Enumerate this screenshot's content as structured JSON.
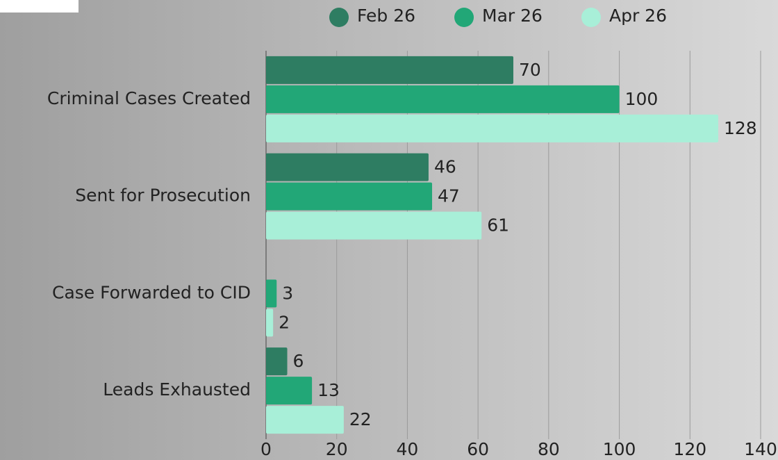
{
  "chart_data": {
    "type": "hbar",
    "categories": [
      "Criminal Cases Created",
      "Sent for Prosecution",
      "Case Forwarded to CID",
      "Leads Exhausted"
    ],
    "series": [
      {
        "name": "Feb 26",
        "color": "#2e7d62",
        "values": [
          70,
          46,
          null,
          6
        ]
      },
      {
        "name": "Mar 26",
        "color": "#22a777",
        "values": [
          100,
          47,
          3,
          13
        ]
      },
      {
        "name": "Apr 26",
        "color": "#a8efd8",
        "values": [
          128,
          61,
          2,
          22
        ]
      }
    ],
    "xlim": [
      0,
      140
    ],
    "xticks": [
      0,
      20,
      40,
      60,
      80,
      100,
      120,
      140
    ],
    "grid": true,
    "legend": "top"
  }
}
